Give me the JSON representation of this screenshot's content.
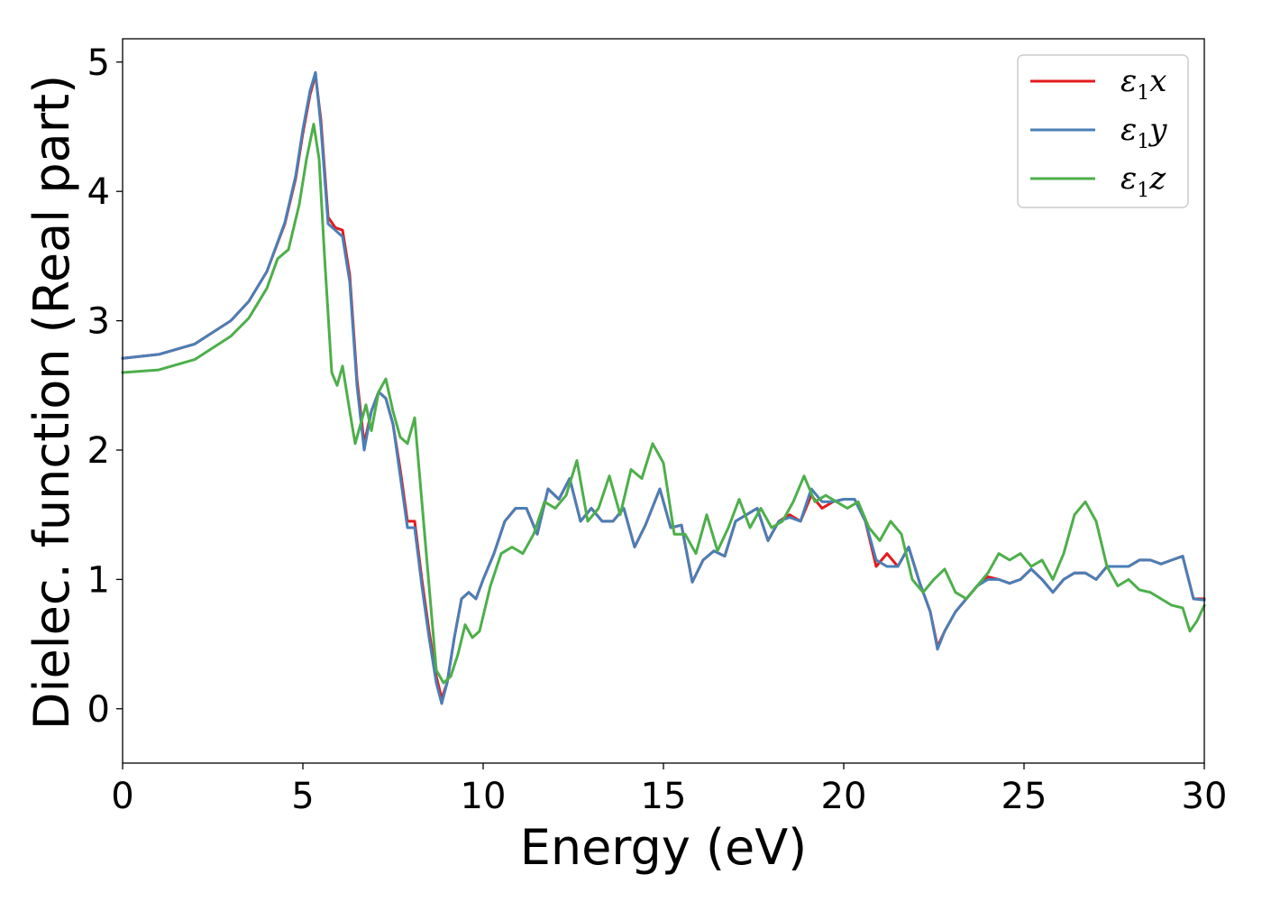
{
  "chart_data": {
    "type": "line",
    "title": "",
    "xlabel": "Energy (eV)",
    "ylabel": "Dielec. function (Real part)",
    "xlim": [
      0,
      30
    ],
    "ylim": [
      -0.42,
      5.18
    ],
    "xticks": [
      0,
      5,
      10,
      15,
      20,
      25,
      30
    ],
    "yticks": [
      0,
      1,
      2,
      3,
      4,
      5
    ],
    "xtick_labels": [
      "0",
      "5",
      "10",
      "15",
      "20",
      "25",
      "30"
    ],
    "ytick_labels": [
      "0",
      "1",
      "2",
      "3",
      "4",
      "5"
    ],
    "grid": false,
    "legend_position": "top-right",
    "series": [
      {
        "name": "ε1x",
        "legend": {
          "base": "ε",
          "sub": "1",
          "axis": "x"
        },
        "color": "#e41a1c",
        "x": [
          0,
          1,
          2,
          3,
          3.5,
          4,
          4.5,
          4.8,
          5.0,
          5.2,
          5.35,
          5.5,
          5.7,
          5.9,
          6.1,
          6.3,
          6.5,
          6.7,
          6.9,
          7.1,
          7.3,
          7.5,
          7.7,
          7.9,
          8.1,
          8.3,
          8.5,
          8.7,
          8.85,
          9.0,
          9.2,
          9.4,
          9.6,
          9.8,
          10.0,
          10.3,
          10.6,
          10.9,
          11.2,
          11.5,
          11.8,
          12.1,
          12.4,
          12.7,
          13.0,
          13.3,
          13.6,
          13.9,
          14.2,
          14.5,
          14.9,
          15.2,
          15.5,
          15.8,
          16.1,
          16.4,
          16.7,
          17.0,
          17.3,
          17.6,
          17.9,
          18.2,
          18.5,
          18.8,
          19.1,
          19.4,
          19.7,
          20.0,
          20.3,
          20.6,
          20.9,
          21.2,
          21.5,
          21.8,
          22.1,
          22.4,
          22.6,
          22.8,
          23.1,
          23.4,
          23.7,
          24.0,
          24.3,
          24.6,
          24.9,
          25.2,
          25.5,
          25.8,
          26.1,
          26.4,
          26.7,
          27.0,
          27.3,
          27.6,
          27.9,
          28.2,
          28.5,
          28.8,
          29.1,
          29.4,
          29.7,
          30.0
        ],
        "y": [
          2.71,
          2.74,
          2.82,
          3.0,
          3.15,
          3.38,
          3.75,
          4.1,
          4.45,
          4.75,
          4.9,
          4.55,
          3.8,
          3.72,
          3.7,
          3.35,
          2.55,
          2.05,
          2.3,
          2.45,
          2.4,
          2.2,
          1.85,
          1.45,
          1.45,
          1.0,
          0.6,
          0.25,
          0.08,
          0.2,
          0.55,
          0.85,
          0.9,
          0.85,
          1.0,
          1.2,
          1.45,
          1.55,
          1.55,
          1.35,
          1.7,
          1.62,
          1.78,
          1.45,
          1.55,
          1.45,
          1.45,
          1.55,
          1.25,
          1.42,
          1.7,
          1.4,
          1.42,
          0.98,
          1.15,
          1.22,
          1.18,
          1.45,
          1.5,
          1.55,
          1.3,
          1.45,
          1.5,
          1.45,
          1.65,
          1.55,
          1.6,
          1.62,
          1.62,
          1.45,
          1.1,
          1.2,
          1.1,
          1.25,
          0.98,
          0.75,
          0.48,
          0.6,
          0.75,
          0.85,
          0.95,
          1.02,
          1.0,
          0.97,
          1.0,
          1.08,
          1.0,
          0.9,
          1.0,
          1.05,
          1.05,
          1.0,
          1.1,
          1.1,
          1.1,
          1.15,
          1.15,
          1.12,
          1.15,
          1.18,
          0.85,
          0.85
        ]
      },
      {
        "name": "ε1y",
        "legend": {
          "base": "ε",
          "sub": "1",
          "axis": "y"
        },
        "color": "#4a7fb6",
        "x": [
          0,
          1,
          2,
          3,
          3.5,
          4,
          4.5,
          4.8,
          5.0,
          5.2,
          5.35,
          5.5,
          5.7,
          5.9,
          6.1,
          6.3,
          6.5,
          6.7,
          6.9,
          7.1,
          7.3,
          7.5,
          7.7,
          7.9,
          8.1,
          8.3,
          8.5,
          8.7,
          8.85,
          9.0,
          9.2,
          9.4,
          9.6,
          9.8,
          10.0,
          10.3,
          10.6,
          10.9,
          11.2,
          11.5,
          11.8,
          12.1,
          12.4,
          12.7,
          13.0,
          13.3,
          13.6,
          13.9,
          14.2,
          14.5,
          14.9,
          15.2,
          15.5,
          15.8,
          16.1,
          16.4,
          16.7,
          17.0,
          17.3,
          17.6,
          17.9,
          18.2,
          18.5,
          18.8,
          19.1,
          19.4,
          19.7,
          20.0,
          20.3,
          20.6,
          20.9,
          21.2,
          21.5,
          21.8,
          22.1,
          22.4,
          22.6,
          22.8,
          23.1,
          23.4,
          23.7,
          24.0,
          24.3,
          24.6,
          24.9,
          25.2,
          25.5,
          25.8,
          26.1,
          26.4,
          26.7,
          27.0,
          27.3,
          27.6,
          27.9,
          28.2,
          28.5,
          28.8,
          29.1,
          29.4,
          29.7,
          30.0
        ],
        "y": [
          2.71,
          2.74,
          2.82,
          3.0,
          3.15,
          3.38,
          3.76,
          4.12,
          4.48,
          4.78,
          4.92,
          4.5,
          3.75,
          3.7,
          3.65,
          3.3,
          2.5,
          2.0,
          2.3,
          2.45,
          2.4,
          2.2,
          1.8,
          1.4,
          1.4,
          0.95,
          0.55,
          0.2,
          0.04,
          0.2,
          0.55,
          0.85,
          0.9,
          0.85,
          1.0,
          1.2,
          1.45,
          1.55,
          1.55,
          1.35,
          1.7,
          1.62,
          1.78,
          1.45,
          1.55,
          1.45,
          1.45,
          1.55,
          1.25,
          1.42,
          1.7,
          1.4,
          1.42,
          0.98,
          1.15,
          1.22,
          1.18,
          1.45,
          1.5,
          1.55,
          1.3,
          1.45,
          1.48,
          1.45,
          1.7,
          1.6,
          1.6,
          1.62,
          1.62,
          1.45,
          1.15,
          1.1,
          1.1,
          1.25,
          0.98,
          0.75,
          0.46,
          0.6,
          0.75,
          0.85,
          0.95,
          1.0,
          1.0,
          0.97,
          1.0,
          1.08,
          1.0,
          0.9,
          1.0,
          1.05,
          1.05,
          1.0,
          1.1,
          1.1,
          1.1,
          1.15,
          1.15,
          1.12,
          1.15,
          1.18,
          0.85,
          0.84
        ]
      },
      {
        "name": "ε1z",
        "legend": {
          "base": "ε",
          "sub": "1",
          "axis": "z"
        },
        "color": "#4daf4a",
        "x": [
          0,
          1,
          2,
          3,
          3.5,
          4,
          4.3,
          4.6,
          4.9,
          5.1,
          5.3,
          5.45,
          5.6,
          5.8,
          5.95,
          6.1,
          6.3,
          6.45,
          6.6,
          6.75,
          6.9,
          7.1,
          7.3,
          7.5,
          7.7,
          7.9,
          8.1,
          8.3,
          8.5,
          8.7,
          8.9,
          9.1,
          9.3,
          9.5,
          9.7,
          9.9,
          10.2,
          10.5,
          10.8,
          11.1,
          11.4,
          11.7,
          12.0,
          12.3,
          12.6,
          12.9,
          13.2,
          13.5,
          13.8,
          14.1,
          14.4,
          14.7,
          15.0,
          15.3,
          15.6,
          15.9,
          16.2,
          16.5,
          16.8,
          17.1,
          17.4,
          17.7,
          18.0,
          18.3,
          18.6,
          18.9,
          19.2,
          19.5,
          19.8,
          20.1,
          20.4,
          20.7,
          21.0,
          21.3,
          21.6,
          21.9,
          22.2,
          22.5,
          22.8,
          23.1,
          23.4,
          23.7,
          24.0,
          24.3,
          24.6,
          24.9,
          25.2,
          25.5,
          25.8,
          26.1,
          26.4,
          26.7,
          27.0,
          27.3,
          27.6,
          27.9,
          28.2,
          28.5,
          28.8,
          29.1,
          29.4,
          29.6,
          29.8,
          30.0
        ],
        "y": [
          2.6,
          2.62,
          2.7,
          2.88,
          3.02,
          3.25,
          3.48,
          3.55,
          3.9,
          4.25,
          4.52,
          4.25,
          3.5,
          2.6,
          2.5,
          2.65,
          2.3,
          2.05,
          2.2,
          2.35,
          2.15,
          2.45,
          2.55,
          2.3,
          2.1,
          2.05,
          2.25,
          1.6,
          0.95,
          0.3,
          0.2,
          0.25,
          0.42,
          0.65,
          0.55,
          0.6,
          0.95,
          1.2,
          1.25,
          1.2,
          1.35,
          1.6,
          1.55,
          1.65,
          1.92,
          1.45,
          1.55,
          1.8,
          1.5,
          1.85,
          1.78,
          2.05,
          1.9,
          1.35,
          1.35,
          1.2,
          1.5,
          1.22,
          1.4,
          1.62,
          1.4,
          1.55,
          1.4,
          1.45,
          1.6,
          1.8,
          1.6,
          1.65,
          1.6,
          1.55,
          1.6,
          1.4,
          1.3,
          1.45,
          1.35,
          1.0,
          0.9,
          1.0,
          1.08,
          0.9,
          0.85,
          0.95,
          1.05,
          1.2,
          1.15,
          1.2,
          1.1,
          1.15,
          1.0,
          1.2,
          1.5,
          1.6,
          1.45,
          1.1,
          0.95,
          1.0,
          0.92,
          0.9,
          0.85,
          0.8,
          0.78,
          0.6,
          0.68,
          0.8
        ]
      }
    ]
  }
}
